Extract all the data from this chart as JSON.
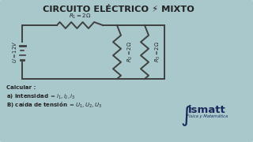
{
  "title": "CIRCUITO ELÉCTRICO ⚡ MIXTO",
  "bg_color": "#a8c8cc",
  "circuit_color": "#404040",
  "text_color": "#222222",
  "R1_label": "$R_1 = 2\\Omega$",
  "R2_label": "$R_2 = 2\\Omega$",
  "R3_label": "$R_3 = 2\\Omega$",
  "V_label": "$U = 12V$",
  "calc_line0": "Calcular :",
  "calc_line1": "a) intensidad $=i_1, i_2, i_3$",
  "calc_line2": "B) caída de tensión $=U_1, U_2, U_3$",
  "brand_main": "ismatt",
  "brand_sub": "Física y Matemática",
  "brand_color": "#1a2a5a"
}
